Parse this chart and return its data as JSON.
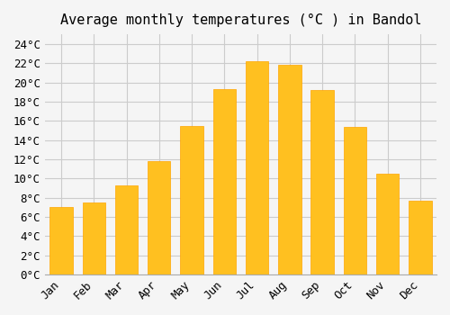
{
  "title": "Average monthly temperatures (°C ) in Bandol",
  "months": [
    "Jan",
    "Feb",
    "Mar",
    "Apr",
    "May",
    "Jun",
    "Jul",
    "Aug",
    "Sep",
    "Oct",
    "Nov",
    "Dec"
  ],
  "temperatures": [
    7.0,
    7.5,
    9.3,
    11.8,
    15.5,
    19.3,
    22.2,
    21.8,
    19.2,
    15.4,
    10.5,
    7.7
  ],
  "bar_color": "#FFC020",
  "bar_edge_color": "#FFA500",
  "background_color": "#F5F5F5",
  "grid_color": "#CCCCCC",
  "ylim": [
    0,
    25
  ],
  "yticks": [
    0,
    2,
    4,
    6,
    8,
    10,
    12,
    14,
    16,
    18,
    20,
    22,
    24
  ],
  "title_fontsize": 11,
  "tick_fontsize": 9,
  "font_family": "monospace"
}
